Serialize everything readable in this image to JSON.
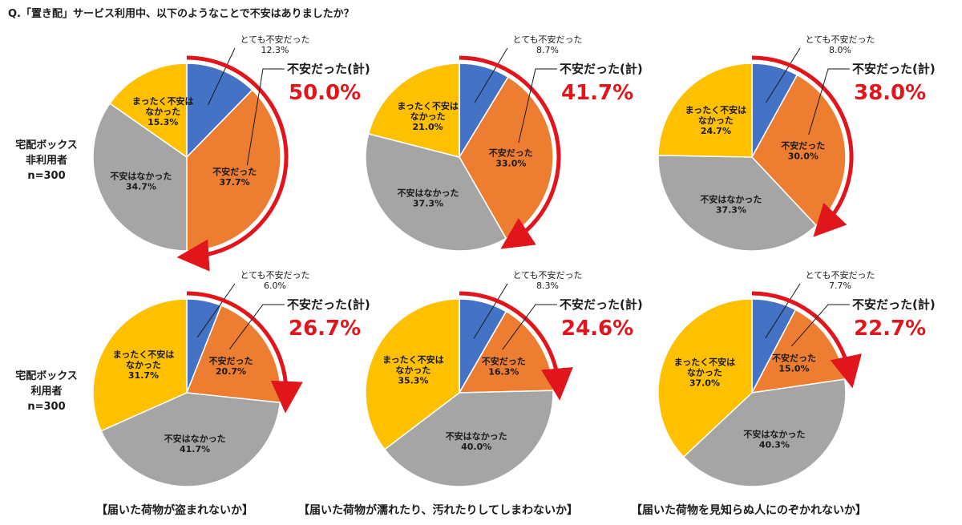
{
  "question": "Q.「置き配」サービス利用中、以下のようなことで不安はありましたか？",
  "row_labels": [
    [
      "宅配ボックス",
      "非利用者",
      "n=300"
    ],
    [
      "宅配ボックス",
      "利用者",
      "n=300"
    ]
  ],
  "panel_captions": [
    "【届いた荷物が盗まれないか】",
    "【届いた荷物が濡れたり、汚れたりしてしまわないか】",
    "【届いた荷物を見知らぬ人にのぞかれないか】"
  ],
  "colors": {
    "very_anxious": "#4472c4",
    "anxious": "#ed7d31",
    "not_anxious": "#a5a5a5",
    "not_at_all": "#ffc000",
    "accent": "#e0161c"
  },
  "chart_data": [
    {
      "type": "pie",
      "categories": [
        "とても不安だった",
        "不安だった",
        "不安はなかった",
        "まったく不安はなかった"
      ],
      "values": [
        12.3,
        37.7,
        34.7,
        15.3
      ],
      "value_labels": [
        "12.3%",
        "37.7%",
        "34.7%",
        "15.3%"
      ],
      "total_label": "不安だった(計)",
      "total_value": "50.0%"
    },
    {
      "type": "pie",
      "categories": [
        "とても不安だった",
        "不安だった",
        "不安はなかった",
        "まったく不安はなかった"
      ],
      "values": [
        8.7,
        33.0,
        37.3,
        21.0
      ],
      "value_labels": [
        "8.7%",
        "33.0%",
        "37.3%",
        "21.0%"
      ],
      "total_label": "不安だった(計)",
      "total_value": "41.7%"
    },
    {
      "type": "pie",
      "categories": [
        "とても不安だった",
        "不安だった",
        "不安はなかった",
        "まったく不安はなかった"
      ],
      "values": [
        8.0,
        30.0,
        37.3,
        24.7
      ],
      "value_labels": [
        "8.0%",
        "30.0%",
        "37.3%",
        "24.7%"
      ],
      "total_label": "不安だった(計)",
      "total_value": "38.0%"
    },
    {
      "type": "pie",
      "categories": [
        "とても不安だった",
        "不安だった",
        "不安はなかった",
        "まったく不安はなかった"
      ],
      "values": [
        6.0,
        20.7,
        41.7,
        31.7
      ],
      "value_labels": [
        "6.0%",
        "20.7%",
        "41.7%",
        "31.7%"
      ],
      "total_label": "不安だった(計)",
      "total_value": "26.7%"
    },
    {
      "type": "pie",
      "categories": [
        "とても不安だった",
        "不安だった",
        "不安はなかった",
        "まったく不安はなかった"
      ],
      "values": [
        8.3,
        16.3,
        40.0,
        35.3
      ],
      "value_labels": [
        "8.3%",
        "16.3%",
        "40.0%",
        "35.3%"
      ],
      "total_label": "不安だった(計)",
      "total_value": "24.6%"
    },
    {
      "type": "pie",
      "categories": [
        "とても不安だった",
        "不安だった",
        "不安はなかった",
        "まったく不安はなかった"
      ],
      "values": [
        7.7,
        15.0,
        40.3,
        37.0
      ],
      "value_labels": [
        "7.7%",
        "15.0%",
        "40.3%",
        "37.0%"
      ],
      "total_label": "不安だった(計)",
      "total_value": "22.7%"
    }
  ]
}
